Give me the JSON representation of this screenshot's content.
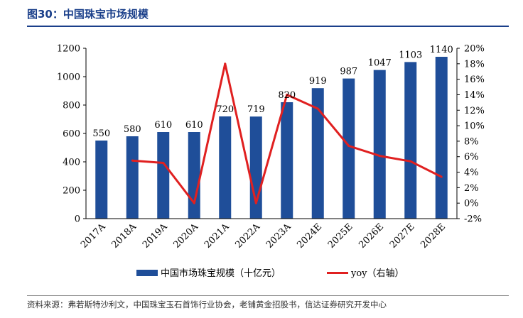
{
  "header": {
    "title": "图30：中国珠宝市场规模"
  },
  "source": "资料来源：弗若斯特沙利文，中国珠宝玉石首饰行业协会，老铺黄金招股书，信达证券研究开发中心",
  "colors": {
    "bar": "#1f4e99",
    "line": "#e02020",
    "title": "#1a3f8a"
  },
  "chart_data": {
    "type": "bar",
    "title": "",
    "categories": [
      "2017A",
      "2018A",
      "2019A",
      "2020A",
      "2021A",
      "2022A",
      "2023A",
      "2024E",
      "2025E",
      "2026E",
      "2027E",
      "2028E"
    ],
    "series": [
      {
        "name": "中国市场珠宝规模（十亿元）",
        "type": "bar",
        "axis": "left",
        "values": [
          550,
          580,
          610,
          610,
          720,
          719,
          820,
          919,
          987,
          1047,
          1103,
          1140
        ],
        "labels": [
          "550",
          "580",
          "610",
          "610",
          "720",
          "719",
          "820",
          "919",
          "987",
          "1047",
          "1103",
          "1140"
        ]
      },
      {
        "name": "yoy（右轴）",
        "type": "line",
        "axis": "right",
        "values": [
          null,
          5.5,
          5.2,
          0.0,
          18.0,
          0.0,
          14.0,
          12.2,
          7.4,
          6.1,
          5.4,
          3.4
        ]
      }
    ],
    "y_left": {
      "min": 0,
      "max": 1200,
      "ticks": [
        "0",
        "200",
        "400",
        "600",
        "800",
        "1000",
        "1200"
      ]
    },
    "y_right": {
      "min": -2,
      "max": 20,
      "ticks": [
        "-2%",
        "0%",
        "2%",
        "4%",
        "6%",
        "8%",
        "10%",
        "12%",
        "14%",
        "16%",
        "18%",
        "20%"
      ]
    },
    "grid": false,
    "legend_position": "bottom"
  }
}
